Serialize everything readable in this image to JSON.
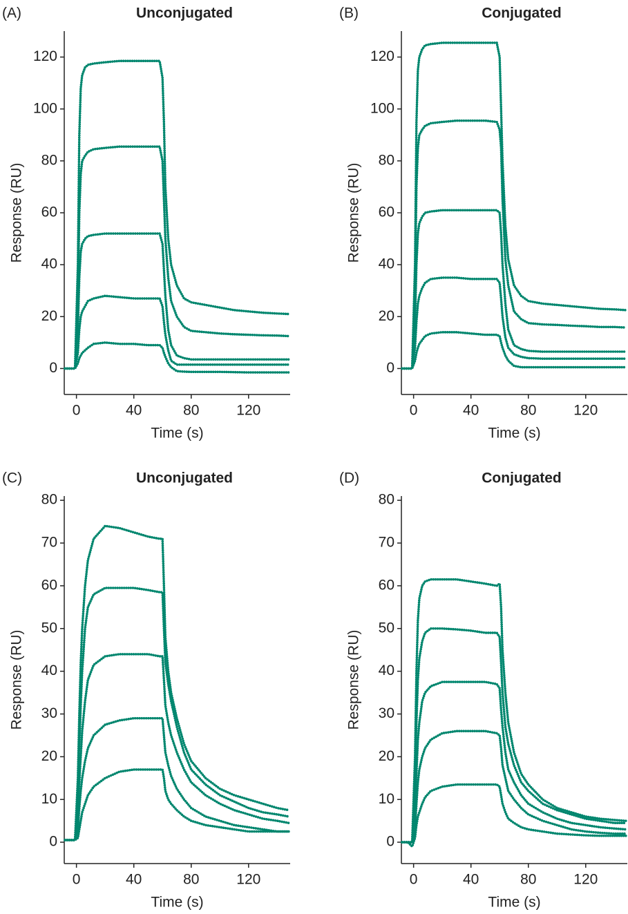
{
  "chart_data": [
    {
      "type": "line",
      "panel_label": "(A)",
      "title": "Unconjugated",
      "x_label": "Time (s)",
      "y_label": "Response (RU)",
      "color": "#00866e",
      "xlim": [
        -8.5,
        149
      ],
      "ylim": [
        -10,
        130
      ],
      "xticks": [
        0,
        40,
        80,
        120
      ],
      "yticks": [
        0,
        20,
        40,
        60,
        80,
        100,
        120
      ],
      "x": [
        -8,
        -4,
        -1,
        1,
        2,
        3,
        4,
        6,
        8,
        12,
        20,
        30,
        40,
        50,
        58,
        60,
        61,
        62,
        64,
        66,
        70,
        75,
        80,
        90,
        100,
        110,
        120,
        130,
        140,
        148
      ],
      "series": [
        {
          "values": [
            0,
            0,
            0,
            40,
            90,
            108,
            113,
            116,
            117,
            117.5,
            118,
            118.5,
            118.5,
            118.5,
            118.5,
            112,
            95,
            70,
            50,
            40,
            32,
            27,
            25.5,
            24.5,
            23.5,
            22.5,
            22,
            21.5,
            21.2,
            21
          ]
        },
        {
          "values": [
            0,
            0,
            0,
            25,
            60,
            75,
            80,
            82,
            83.5,
            84.5,
            85,
            85.5,
            85.5,
            85.5,
            85.5,
            80,
            65,
            50,
            35,
            26,
            20,
            16,
            14.5,
            14,
            13.5,
            13.2,
            13,
            12.8,
            12.7,
            12.5
          ]
        },
        {
          "values": [
            0,
            0,
            0,
            15,
            35,
            45,
            48,
            50,
            51,
            51.5,
            52,
            52,
            52,
            52,
            52,
            48,
            38,
            28,
            15,
            9,
            5,
            4,
            3.5,
            3.5,
            3.5,
            3.5,
            3.5,
            3.5,
            3.5,
            3.5
          ]
        },
        {
          "values": [
            0,
            0,
            0,
            6,
            15,
            20,
            22,
            24,
            26,
            27,
            28,
            27.5,
            27,
            27,
            27,
            24,
            18,
            13,
            7,
            3,
            1.5,
            1.5,
            1.5,
            1.5,
            1.5,
            1.5,
            1.5,
            1.5,
            1.5,
            1.5
          ]
        },
        {
          "values": [
            0,
            0,
            0,
            2,
            4,
            5,
            6,
            7,
            8,
            9.5,
            10,
            9.5,
            9.5,
            9,
            9,
            8,
            6,
            4.5,
            2,
            0.5,
            -1,
            -1.2,
            -1.3,
            -1.3,
            -1.3,
            -1.4,
            -1.5,
            -1.5,
            -1.5,
            -1.5
          ]
        }
      ]
    },
    {
      "type": "line",
      "panel_label": "(B)",
      "title": "Conjugated",
      "x_label": "Time (s)",
      "y_label": "Response (RU)",
      "color": "#00866e",
      "xlim": [
        -8.5,
        149
      ],
      "ylim": [
        -10,
        130
      ],
      "xticks": [
        0,
        40,
        80,
        120
      ],
      "yticks": [
        0,
        20,
        40,
        60,
        80,
        100,
        120
      ],
      "x": [
        -8,
        -4,
        -1,
        1,
        2,
        3,
        4,
        6,
        8,
        12,
        20,
        30,
        40,
        50,
        58,
        60,
        61,
        62,
        64,
        66,
        70,
        75,
        80,
        90,
        100,
        110,
        120,
        130,
        140,
        148
      ],
      "series": [
        {
          "values": [
            0,
            0,
            0,
            40,
            95,
            115,
            120,
            123,
            124.5,
            125,
            125.5,
            125.5,
            125.5,
            125.5,
            125.5,
            120,
            100,
            80,
            55,
            42,
            32,
            28,
            26,
            25,
            24.5,
            24,
            23.5,
            23,
            22.8,
            22.5
          ]
        },
        {
          "values": [
            0,
            0,
            0,
            30,
            70,
            85,
            90,
            92,
            93.5,
            94.5,
            95,
            95.5,
            95.5,
            95.5,
            95,
            92,
            85,
            65,
            42,
            32,
            22,
            19,
            17.5,
            17,
            16.8,
            16.5,
            16.3,
            16,
            16,
            15.8
          ]
        },
        {
          "values": [
            0,
            0,
            0,
            18,
            40,
            52,
            56,
            58.5,
            60,
            60.5,
            61,
            61,
            61,
            61,
            61,
            60,
            52,
            40,
            25,
            15,
            9,
            7.5,
            6.8,
            6.5,
            6.5,
            6.5,
            6.5,
            6.5,
            6.5,
            6.5
          ]
        },
        {
          "values": [
            0,
            0,
            0,
            8,
            18,
            25,
            28,
            31,
            33,
            34.5,
            35,
            35,
            34.5,
            34.5,
            34.5,
            33,
            27,
            20,
            12,
            8,
            5.5,
            4.5,
            4,
            3.8,
            3.8,
            3.8,
            3.8,
            3.8,
            3.8,
            3.8
          ]
        },
        {
          "values": [
            0,
            0,
            0,
            3,
            6,
            8,
            9.5,
            11,
            12.5,
            13.5,
            14,
            14,
            13.5,
            13,
            13,
            12.5,
            10,
            8,
            5,
            3,
            1,
            0.5,
            0.5,
            0.5,
            0.5,
            0.5,
            0.5,
            0.5,
            0.5,
            0.5
          ]
        }
      ]
    },
    {
      "type": "line",
      "panel_label": "(C)",
      "title": "Unconjugated",
      "x_label": "Time (s)",
      "y_label": "Response (RU)",
      "color": "#00866e",
      "xlim": [
        -8.5,
        149
      ],
      "ylim": [
        -5,
        81
      ],
      "xticks": [
        0,
        40,
        80,
        120
      ],
      "yticks": [
        0,
        10,
        20,
        30,
        40,
        50,
        60,
        70,
        80
      ],
      "x": [
        -8,
        -4,
        -1,
        1,
        2,
        3,
        4,
        6,
        8,
        12,
        20,
        30,
        40,
        50,
        58,
        60,
        61,
        62,
        64,
        66,
        70,
        75,
        80,
        90,
        100,
        110,
        120,
        130,
        140,
        148
      ],
      "series": [
        {
          "values": [
            0.5,
            0.5,
            0.5,
            15,
            30,
            42,
            50,
            60,
            66,
            71,
            74,
            73.5,
            72.5,
            71.5,
            71,
            71,
            60,
            48,
            40,
            35,
            29,
            23,
            19,
            15,
            12.5,
            11,
            10,
            9,
            8,
            7.5
          ]
        },
        {
          "values": [
            0.5,
            0.5,
            0.5,
            10,
            22,
            32,
            40,
            50,
            55,
            58,
            59.5,
            59.5,
            59.5,
            59,
            58.5,
            58.5,
            50,
            42,
            37,
            33,
            27,
            21,
            17,
            13.5,
            11,
            9.5,
            8,
            7,
            6.5,
            6
          ]
        },
        {
          "values": [
            0.5,
            0.5,
            0.5,
            6,
            14,
            20,
            26,
            33,
            38,
            41.5,
            43.5,
            44,
            44,
            44,
            43.5,
            43.5,
            38,
            32,
            28,
            25,
            21,
            17,
            14,
            11,
            9,
            7.5,
            6.5,
            5.5,
            5,
            4.5
          ]
        },
        {
          "values": [
            0.5,
            0.5,
            0.5,
            3,
            8,
            12,
            15,
            19,
            22,
            25,
            27.5,
            28.5,
            29,
            29,
            29,
            29,
            25,
            21,
            18,
            15.5,
            12.5,
            10,
            8,
            6,
            5,
            4,
            3.5,
            3,
            2.5,
            2.5
          ]
        },
        {
          "values": [
            0.5,
            0.5,
            0.5,
            1,
            3,
            5,
            7,
            9,
            11,
            13,
            15,
            16.5,
            17,
            17,
            17,
            17,
            15,
            12,
            10,
            9,
            7.5,
            6,
            5,
            4,
            3.5,
            3,
            2.5,
            2.5,
            2.5,
            2.5
          ]
        }
      ]
    },
    {
      "type": "line",
      "panel_label": "(D)",
      "title": "Conjugated",
      "x_label": "Time (s)",
      "y_label": "Response (RU)",
      "color": "#00866e",
      "xlim": [
        -8.5,
        149
      ],
      "ylim": [
        -5,
        81
      ],
      "xticks": [
        0,
        40,
        80,
        120
      ],
      "yticks": [
        0,
        10,
        20,
        30,
        40,
        50,
        60,
        70,
        80
      ],
      "x": [
        -8,
        -4,
        -1,
        1,
        2,
        3,
        4,
        6,
        8,
        12,
        20,
        30,
        40,
        50,
        58,
        60,
        61,
        62,
        64,
        66,
        70,
        75,
        80,
        90,
        100,
        110,
        120,
        130,
        140,
        148
      ],
      "series": [
        {
          "values": [
            0,
            0,
            0,
            20,
            40,
            52,
            57,
            60,
            61,
            61.5,
            61.5,
            61.5,
            61,
            60.5,
            60,
            60.5,
            55,
            45,
            35,
            28,
            21,
            16,
            13.5,
            10,
            8,
            7,
            6,
            5.5,
            5.2,
            5
          ]
        },
        {
          "values": [
            0,
            0,
            0,
            12,
            28,
            38,
            43,
            47,
            49,
            50,
            50,
            49.8,
            49.5,
            49,
            49,
            48,
            42,
            35,
            27,
            23,
            18,
            14,
            12,
            9,
            7.5,
            6.5,
            5.5,
            5,
            4.5,
            4.5
          ]
        },
        {
          "values": [
            0,
            0,
            0,
            7,
            16,
            24,
            28,
            33,
            35,
            36.5,
            37.5,
            37.5,
            37.5,
            37.5,
            37,
            36,
            31,
            27,
            21,
            17,
            14,
            11,
            9,
            7,
            5.5,
            4.5,
            4,
            3.5,
            3.2,
            3
          ]
        },
        {
          "values": [
            0,
            0,
            0,
            3,
            9,
            14,
            17,
            20,
            22,
            24,
            25.5,
            26,
            26,
            26,
            25.5,
            25,
            22,
            18,
            15,
            12,
            10,
            8,
            6.5,
            5,
            4,
            3,
            2.5,
            2.2,
            2,
            2
          ]
        },
        {
          "values": [
            0,
            0,
            -1,
            1,
            4,
            6,
            7,
            9,
            10.5,
            12,
            13,
            13.5,
            13.5,
            13.5,
            13.5,
            13,
            11,
            9,
            7,
            5.5,
            4.5,
            3.5,
            3,
            2.5,
            2,
            1.8,
            1.6,
            1.5,
            1.5,
            1.5
          ]
        }
      ]
    }
  ]
}
